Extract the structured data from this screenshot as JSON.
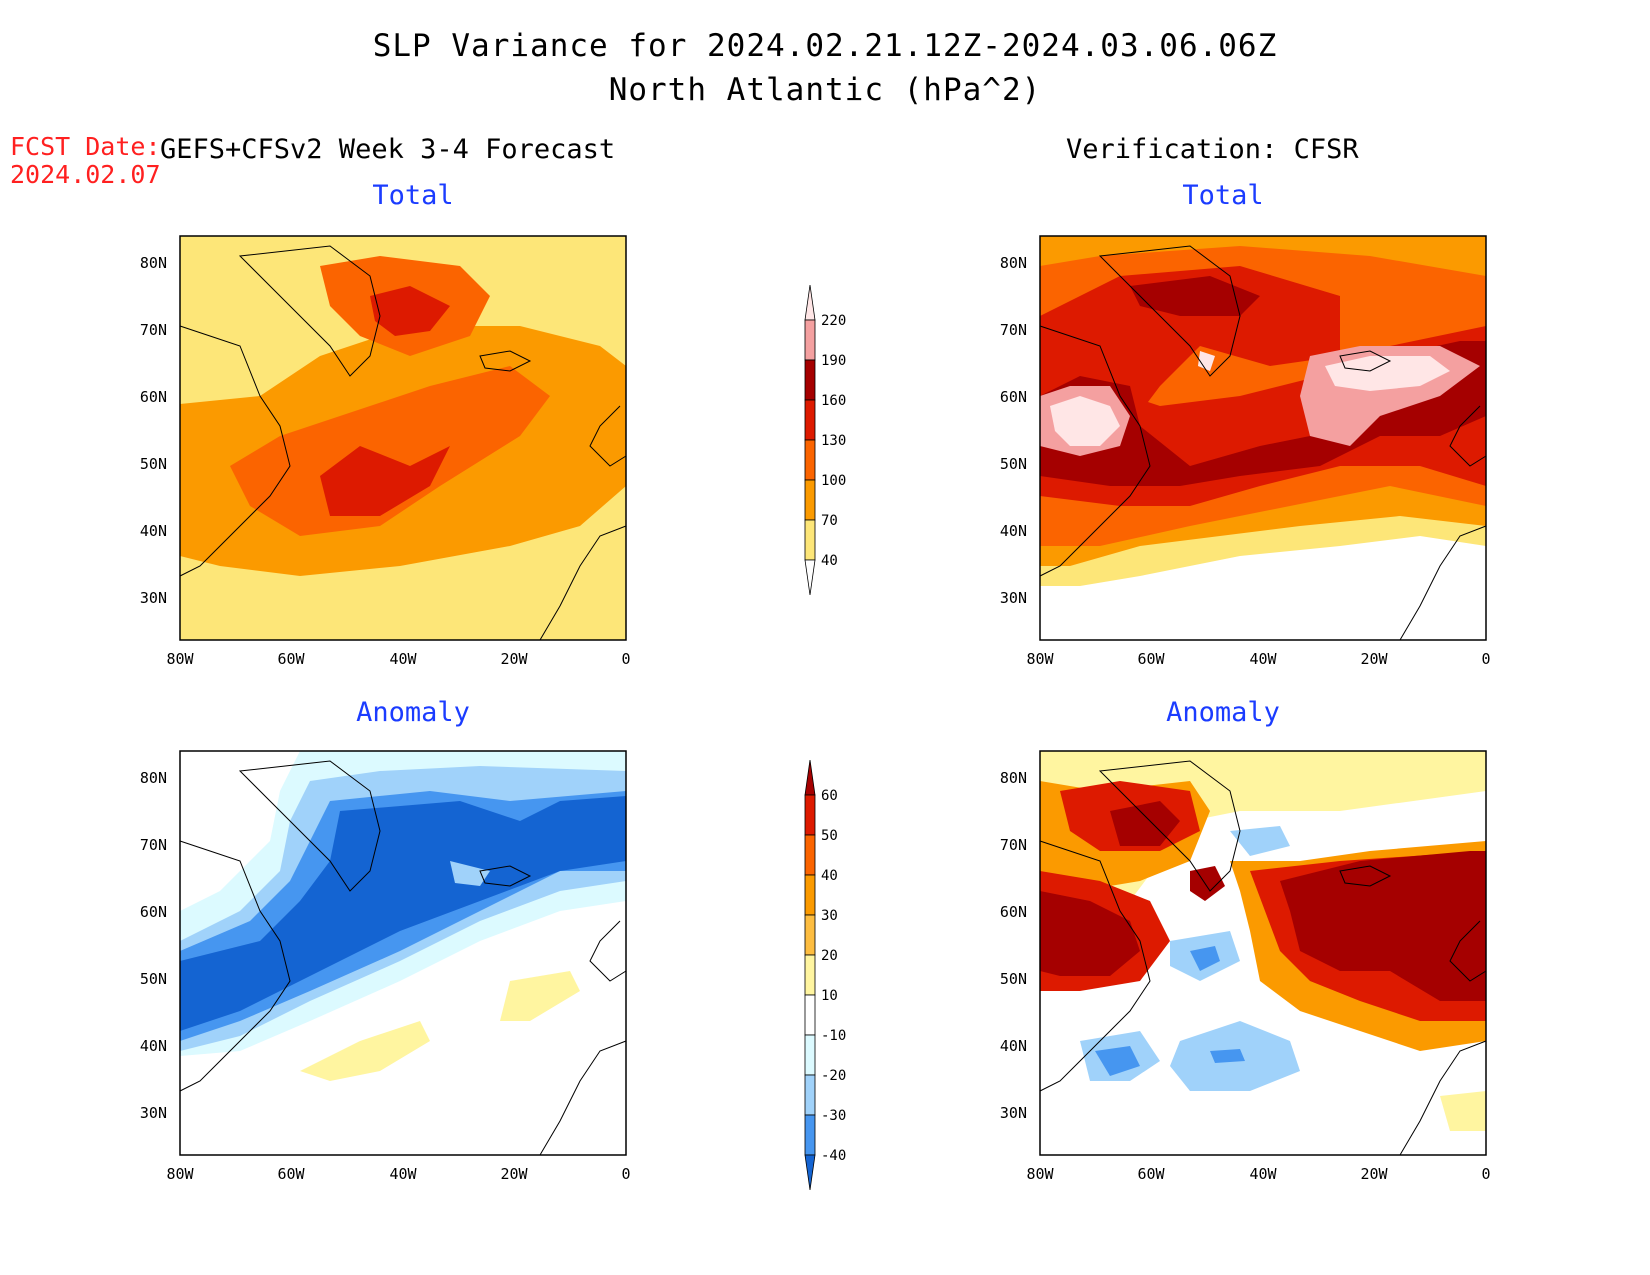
{
  "header": {
    "title_line1": "SLP Variance for 2024.02.21.12Z-2024.03.06.06Z",
    "title_line2": "North Atlantic (hPa^2)",
    "fcst_label": "FCST Date:",
    "fcst_date": "2024.02.07"
  },
  "columns": {
    "left_title": "GEFS+CFSv2 Week 3-4 Forecast",
    "right_title": "Verification: CFSR"
  },
  "panels": {
    "total_label": "Total",
    "anomaly_label": "Anomaly"
  },
  "axes": {
    "lat_ticks": [
      "80N",
      "70N",
      "60N",
      "50N",
      "40N",
      "30N"
    ],
    "lon_ticks": [
      "80W",
      "60W",
      "40W",
      "20W",
      "0"
    ]
  },
  "colorbar_total": {
    "levels": [
      "220",
      "190",
      "160",
      "130",
      "100",
      "70",
      "40"
    ],
    "colors": [
      "#ffe6e6",
      "#f4a0a0",
      "#a50000",
      "#dd1a00",
      "#fb6400",
      "#fb9a00",
      "#fde678"
    ]
  },
  "colorbar_anomaly": {
    "levels": [
      "60",
      "50",
      "40",
      "30",
      "20",
      "10",
      "-10",
      "-20",
      "-30",
      "-40"
    ],
    "colors": [
      "#a50000",
      "#dd1a00",
      "#fb6400",
      "#fb9a00",
      "#fdbd40",
      "#fff5a0",
      "#ffffff",
      "#dcfaff",
      "#a0d2fa",
      "#4696f0",
      "#1464d2"
    ]
  }
}
